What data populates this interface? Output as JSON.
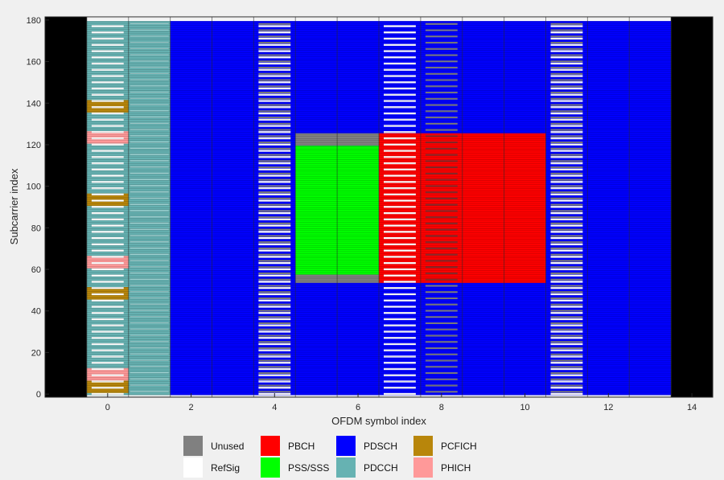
{
  "chart_data": {
    "type": "heatmap",
    "title": "",
    "xlabel": "OFDM symbol index",
    "ylabel": "Subcarrier index",
    "xlim": [
      -1.5,
      14.5
    ],
    "ylim": [
      -1.5,
      181.5
    ],
    "xticks": [
      "0",
      "2",
      "4",
      "6",
      "8",
      "10",
      "12",
      "14"
    ],
    "yticks": [
      "0",
      "20",
      "40",
      "60",
      "80",
      "100",
      "120",
      "140",
      "160",
      "180"
    ],
    "symbols": 14,
    "subcarriers": 180,
    "grid_size": "180 subcarriers x 14 OFDM symbols (15 RBs, 1 subframe)",
    "regions": [
      {
        "channel": "PDCCH",
        "symbols": [
          0,
          1
        ],
        "subcarriers": [
          0,
          179
        ]
      },
      {
        "channel": "PDSCH",
        "symbols": [
          2,
          13
        ],
        "subcarriers": [
          0,
          179
        ]
      },
      {
        "channel": "RefSig",
        "symbols": [
          0,
          4,
          7,
          11
        ],
        "subcarriers": "every 3rd subcarrier"
      },
      {
        "channel": "PCFICH",
        "symbols": [
          0
        ],
        "subcarriers": [
          [
            1,
            6
          ],
          [
            46,
            51
          ],
          [
            91,
            96
          ],
          [
            136,
            141
          ]
        ]
      },
      {
        "channel": "PHICH",
        "symbols": [
          0
        ],
        "subcarriers": [
          [
            7,
            12
          ],
          [
            61,
            66
          ],
          [
            121,
            126
          ]
        ]
      },
      {
        "channel": "PSS/SSS",
        "symbols": [
          5,
          6
        ],
        "subcarriers": [
          58,
          119
        ]
      },
      {
        "channel": "Unused",
        "symbols": [
          5,
          6
        ],
        "subcarriers": [
          [
            54,
            57
          ],
          [
            120,
            125
          ]
        ]
      },
      {
        "channel": "PBCH",
        "symbols": [
          7,
          10
        ],
        "subcarriers": [
          54,
          125
        ]
      },
      {
        "channel": "Unused",
        "symbols": [
          0,
          13
        ],
        "subcarriers": "not used (guard)",
        "note_symbols": [
          -1,
          14
        ]
      }
    ],
    "legend_position": "bottom",
    "legend": [
      {
        "name": "Unused",
        "color": "#808080"
      },
      {
        "name": "PBCH",
        "color": "#ff0000"
      },
      {
        "name": "PDSCH",
        "color": "#0000ff"
      },
      {
        "name": "PCFICH",
        "color": "#b8860b"
      },
      {
        "name": "RefSig",
        "color": "#ffffff"
      },
      {
        "name": "PSS/SSS",
        "color": "#00ff00"
      },
      {
        "name": "PDCCH",
        "color": "#66b2b2"
      },
      {
        "name": "PHICH",
        "color": "#ff9999"
      }
    ]
  }
}
